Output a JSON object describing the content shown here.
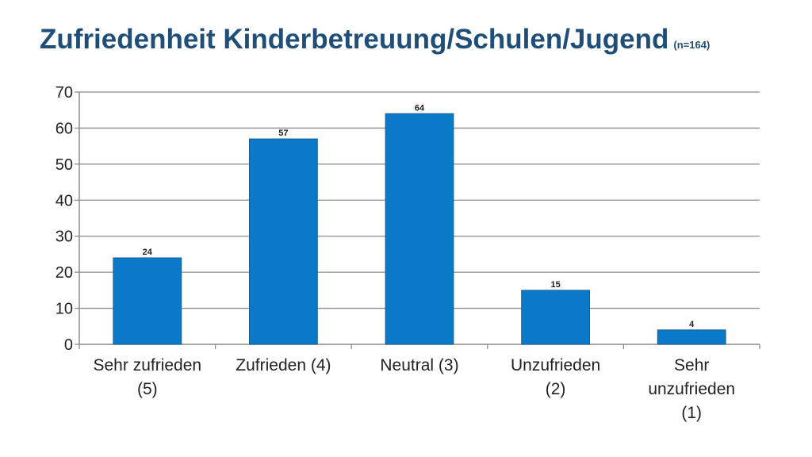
{
  "title": {
    "main": "Zufriedenheit Kinderbetreuung/Schulen/Jugend",
    "sample": "(n=164)"
  },
  "colors": {
    "title": "#1f4e79",
    "bar": "#0a79c8",
    "bar_stroke": "#1a5f96",
    "grid": "#8c8c8c",
    "text": "#222222"
  },
  "chart_data": {
    "type": "bar",
    "title": "Zufriedenheit Kinderbetreuung/Schulen/Jugend",
    "categories": [
      [
        "Sehr zufrieden",
        "(5)"
      ],
      [
        "Zufrieden (4)"
      ],
      [
        "Neutral (3)"
      ],
      [
        "Unzufrieden",
        "(2)"
      ],
      [
        "Sehr",
        "unzufrieden",
        "(1)"
      ]
    ],
    "values": [
      24,
      57,
      64,
      15,
      4
    ],
    "data_labels": [
      "24",
      "57",
      "64",
      "15",
      "4"
    ],
    "ylim": [
      0,
      70
    ],
    "yticks": [
      0,
      10,
      20,
      30,
      40,
      50,
      60,
      70
    ],
    "xlabel": "",
    "ylabel": "",
    "grid": true,
    "legend": "none"
  }
}
